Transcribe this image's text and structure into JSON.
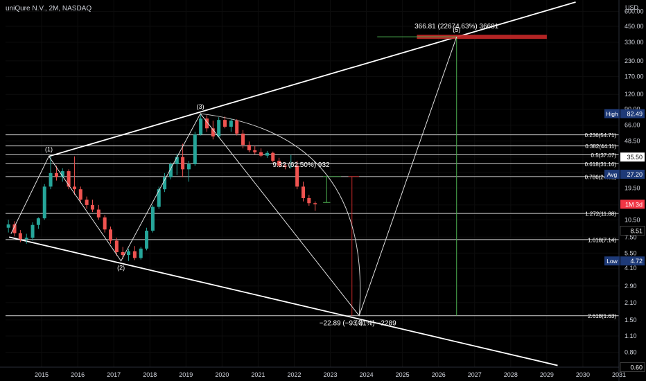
{
  "header": {
    "title": "uniQure N.V., 2M, NASDAQ"
  },
  "price_scale": {
    "currency": "USD"
  },
  "badges": [
    {
      "label": "High",
      "value": "82.49",
      "color": "#1e3a78"
    },
    {
      "label": "",
      "value": "35.50",
      "color": "#ffffff"
    },
    {
      "label": "Avg",
      "value": "27.20",
      "color": "#1e3a78"
    },
    {
      "label": "",
      "value": "1M 3d",
      "color": "#f23645"
    },
    {
      "label": "",
      "value": "8.51",
      "color": "#000000"
    },
    {
      "label": "Low",
      "value": "4.72",
      "color": "#1e3a78"
    },
    {
      "label": "",
      "value": "0.60",
      "color": "#000000"
    }
  ],
  "colors": {
    "up": "#26a69a",
    "down": "#ef5350",
    "bg": "#000000",
    "line": "#ffffff",
    "target": "#c62828"
  },
  "chart_data": {
    "type": "candlestick",
    "y_scale": "log",
    "ylim": [
      0.6,
      750
    ],
    "xlim": [
      2014.0,
      2031.0
    ],
    "x_ticks": [
      "2015",
      "2016",
      "2017",
      "2018",
      "2019",
      "2020",
      "2021",
      "2022",
      "2023",
      "2024",
      "2025",
      "2026",
      "2027",
      "2028",
      "2029",
      "2030",
      "2031"
    ],
    "y_ticks": [
      "600.00",
      "450.00",
      "330.00",
      "230.00",
      "170.00",
      "120.00",
      "90.00",
      "66.00",
      "48.50",
      "35.50",
      "26.50",
      "19.50",
      "14.00",
      "10.50",
      "7.50",
      "5.50",
      "4.10",
      "2.90",
      "2.10",
      "1.50",
      "1.10",
      "0.80",
      "0.60"
    ],
    "candles": [
      {
        "t": 2014.0,
        "o": 9.0,
        "h": 10.5,
        "l": 8.2,
        "c": 9.6
      },
      {
        "t": 2014.17,
        "o": 9.6,
        "h": 10.2,
        "l": 7.6,
        "c": 8.1
      },
      {
        "t": 2014.33,
        "o": 8.1,
        "h": 8.6,
        "l": 6.8,
        "c": 7.2
      },
      {
        "t": 2014.5,
        "o": 7.2,
        "h": 8.0,
        "l": 6.6,
        "c": 7.4
      },
      {
        "t": 2014.67,
        "o": 7.4,
        "h": 10.0,
        "l": 7.0,
        "c": 9.5
      },
      {
        "t": 2014.83,
        "o": 9.5,
        "h": 11.0,
        "l": 8.8,
        "c": 10.8
      },
      {
        "t": 2015.0,
        "o": 10.8,
        "h": 21.0,
        "l": 10.5,
        "c": 20.0
      },
      {
        "t": 2015.17,
        "o": 20.0,
        "h": 36.0,
        "l": 19.0,
        "c": 26.0
      },
      {
        "t": 2015.33,
        "o": 26.0,
        "h": 30.0,
        "l": 22.5,
        "c": 24.0
      },
      {
        "t": 2015.5,
        "o": 24.0,
        "h": 28.5,
        "l": 22.0,
        "c": 27.0
      },
      {
        "t": 2015.67,
        "o": 27.0,
        "h": 28.0,
        "l": 19.0,
        "c": 20.0
      },
      {
        "t": 2015.83,
        "o": 20.0,
        "h": 36.0,
        "l": 17.0,
        "c": 19.0
      },
      {
        "t": 2016.0,
        "o": 19.0,
        "h": 20.0,
        "l": 14.5,
        "c": 15.5
      },
      {
        "t": 2016.17,
        "o": 15.5,
        "h": 16.5,
        "l": 13.0,
        "c": 14.0
      },
      {
        "t": 2016.33,
        "o": 14.0,
        "h": 15.5,
        "l": 12.2,
        "c": 12.8
      },
      {
        "t": 2016.5,
        "o": 12.8,
        "h": 14.0,
        "l": 10.5,
        "c": 11.0
      },
      {
        "t": 2016.67,
        "o": 11.0,
        "h": 11.5,
        "l": 8.2,
        "c": 8.7
      },
      {
        "t": 2016.83,
        "o": 8.7,
        "h": 9.2,
        "l": 6.6,
        "c": 7.0
      },
      {
        "t": 2017.0,
        "o": 7.0,
        "h": 7.4,
        "l": 5.2,
        "c": 5.6
      },
      {
        "t": 2017.17,
        "o": 5.6,
        "h": 6.2,
        "l": 4.9,
        "c": 5.3
      },
      {
        "t": 2017.33,
        "o": 5.3,
        "h": 6.0,
        "l": 4.72,
        "c": 5.7
      },
      {
        "t": 2017.5,
        "o": 5.7,
        "h": 6.3,
        "l": 4.8,
        "c": 5.0
      },
      {
        "t": 2017.67,
        "o": 5.0,
        "h": 6.2,
        "l": 4.85,
        "c": 6.0
      },
      {
        "t": 2017.83,
        "o": 6.0,
        "h": 9.0,
        "l": 5.8,
        "c": 8.5
      },
      {
        "t": 2018.0,
        "o": 8.5,
        "h": 14.0,
        "l": 8.2,
        "c": 13.5
      },
      {
        "t": 2018.17,
        "o": 13.5,
        "h": 20.0,
        "l": 13.0,
        "c": 19.0
      },
      {
        "t": 2018.33,
        "o": 19.0,
        "h": 26.0,
        "l": 18.0,
        "c": 24.0
      },
      {
        "t": 2018.5,
        "o": 24.0,
        "h": 32.0,
        "l": 23.0,
        "c": 31.0
      },
      {
        "t": 2018.67,
        "o": 31.0,
        "h": 38.0,
        "l": 25.0,
        "c": 35.5
      },
      {
        "t": 2018.83,
        "o": 35.5,
        "h": 46.0,
        "l": 24.0,
        "c": 28.0
      },
      {
        "t": 2019.0,
        "o": 28.0,
        "h": 33.0,
        "l": 22.0,
        "c": 31.0
      },
      {
        "t": 2019.17,
        "o": 31.0,
        "h": 58.0,
        "l": 30.0,
        "c": 55.0
      },
      {
        "t": 2019.33,
        "o": 55.0,
        "h": 82.49,
        "l": 54.0,
        "c": 75.0
      },
      {
        "t": 2019.5,
        "o": 75.0,
        "h": 80.0,
        "l": 58.0,
        "c": 62.0
      },
      {
        "t": 2019.67,
        "o": 62.0,
        "h": 72.0,
        "l": 50.0,
        "c": 53.0
      },
      {
        "t": 2019.83,
        "o": 53.0,
        "h": 77.0,
        "l": 52.0,
        "c": 73.0
      },
      {
        "t": 2020.0,
        "o": 73.0,
        "h": 78.0,
        "l": 62.0,
        "c": 64.0
      },
      {
        "t": 2020.17,
        "o": 64.0,
        "h": 75.0,
        "l": 58.0,
        "c": 72.0
      },
      {
        "t": 2020.33,
        "o": 72.0,
        "h": 74.0,
        "l": 54.0,
        "c": 56.0
      },
      {
        "t": 2020.5,
        "o": 56.0,
        "h": 60.0,
        "l": 42.0,
        "c": 45.0
      },
      {
        "t": 2020.67,
        "o": 45.0,
        "h": 48.0,
        "l": 39.0,
        "c": 40.5
      },
      {
        "t": 2020.83,
        "o": 40.5,
        "h": 44.0,
        "l": 37.5,
        "c": 39.0
      },
      {
        "t": 2021.0,
        "o": 39.0,
        "h": 42.0,
        "l": 35.5,
        "c": 36.5
      },
      {
        "t": 2021.17,
        "o": 36.5,
        "h": 40.0,
        "l": 35.0,
        "c": 38.5
      },
      {
        "t": 2021.33,
        "o": 38.5,
        "h": 39.5,
        "l": 32.0,
        "c": 33.0
      },
      {
        "t": 2021.5,
        "o": 33.0,
        "h": 35.0,
        "l": 29.0,
        "c": 30.0
      },
      {
        "t": 2021.67,
        "o": 30.0,
        "h": 32.0,
        "l": 28.0,
        "c": 29.5
      },
      {
        "t": 2021.83,
        "o": 29.5,
        "h": 37.0,
        "l": 28.5,
        "c": 30.0
      },
      {
        "t": 2022.0,
        "o": 30.0,
        "h": 33.0,
        "l": 19.0,
        "c": 20.0
      },
      {
        "t": 2022.17,
        "o": 20.0,
        "h": 22.0,
        "l": 15.0,
        "c": 16.0
      },
      {
        "t": 2022.33,
        "o": 16.0,
        "h": 17.0,
        "l": 13.8,
        "c": 14.5
      },
      {
        "t": 2022.5,
        "o": 14.5,
        "h": 15.0,
        "l": 12.5,
        "c": 14.2
      }
    ],
    "fib_levels": [
      {
        "label": "0.236(54.71)",
        "value": 54.71
      },
      {
        "label": "0.382(44.11)",
        "value": 44.11
      },
      {
        "label": "0.5(37.07)",
        "value": 37.07
      },
      {
        "label": "0.618(31.16)",
        "value": 31.16
      },
      {
        "label": "0.786(24.32)",
        "value": 24.32
      },
      {
        "label": "1.272(11.88)",
        "value": 11.88
      },
      {
        "label": "1.618(7.14)",
        "value": 7.14
      },
      {
        "label": "2.618(1.63)",
        "value": 1.63
      }
    ],
    "wave_points": [
      {
        "label": "(1)",
        "t": 2015.2,
        "v": 36.0
      },
      {
        "label": "(2)",
        "t": 2017.2,
        "v": 4.72
      },
      {
        "label": "(3)",
        "t": 2019.4,
        "v": 82.49
      },
      {
        "label": "(4)",
        "t": 2023.8,
        "v": 1.63
      },
      {
        "label": "(5)",
        "t": 2026.5,
        "v": 366.81
      }
    ],
    "wave_path": [
      {
        "t": 2014.15,
        "v": 8.0
      },
      {
        "t": 2015.2,
        "v": 36.0
      },
      {
        "t": 2017.2,
        "v": 4.72
      },
      {
        "t": 2019.4,
        "v": 82.49
      },
      {
        "t": 2023.8,
        "v": 1.63
      },
      {
        "t": 2026.5,
        "v": 366.81
      }
    ],
    "channel_upper": [
      {
        "t": 2015.2,
        "v": 36.0
      },
      {
        "t": 2029.8,
        "v": 720.0
      }
    ],
    "channel_lower": [
      {
        "t": 2014.1,
        "v": 7.5
      },
      {
        "t": 2029.3,
        "v": 0.62
      }
    ],
    "annotations": [
      {
        "text": "366.81 (22674.63%) 36681",
        "t": 2026.5,
        "v": 366.81
      },
      {
        "text": "9.32 (62.50%) 932",
        "t": 2022.0,
        "v": 24.32
      },
      {
        "text": "−22.89 (−93.31%) −2289",
        "t": 2023.8,
        "v": 1.63
      }
    ]
  }
}
